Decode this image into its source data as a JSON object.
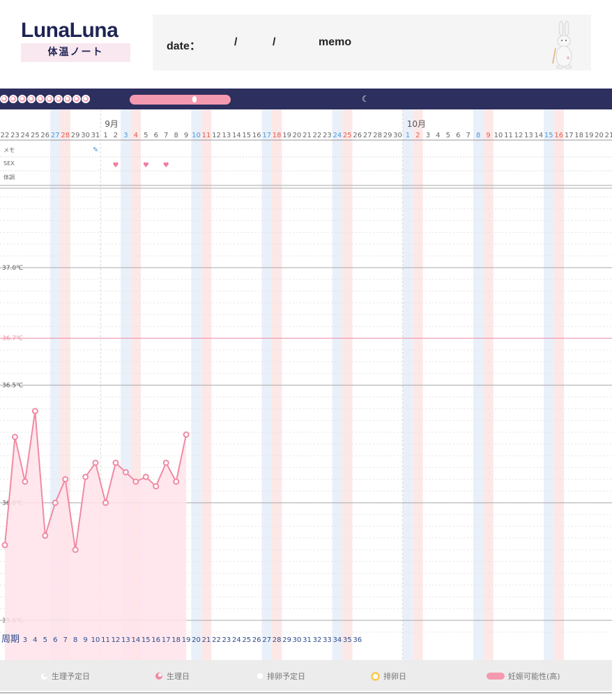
{
  "header": {
    "logo": "LunaLuna",
    "subtitle": "体温ノート",
    "date_label": "date：",
    "slash": "/",
    "memo_label": "memo"
  },
  "days_row": [
    22,
    23,
    24,
    25,
    26,
    27,
    28,
    29,
    30,
    31,
    1,
    2,
    3,
    4,
    5,
    6,
    7,
    8,
    9,
    10,
    11,
    12,
    13,
    14,
    15,
    16,
    17,
    18,
    19,
    20,
    21,
    22,
    23,
    24,
    25,
    26,
    27,
    28,
    29,
    30,
    1,
    2,
    3,
    4,
    5,
    6,
    7,
    8,
    9,
    10,
    11,
    12,
    13,
    14,
    15,
    16,
    17,
    18,
    19,
    20,
    21
  ],
  "day_colors": {
    "blue": [
      5,
      12,
      19,
      26,
      33,
      40,
      47,
      54
    ],
    "red": [
      6,
      13,
      20,
      27,
      34,
      41,
      48,
      55
    ]
  },
  "months": [
    {
      "label": "9月",
      "index": 10
    },
    {
      "label": "10月",
      "index": 40
    }
  ],
  "row_labels": {
    "memo": "メモ",
    "sex": "SEX",
    "condition": "体調"
  },
  "memo_icon": "pencil-icon",
  "sex_days": [
    11,
    14,
    16
  ],
  "memo_days": [
    9
  ],
  "temp_labels": [
    {
      "value": 37.0,
      "label": "37.0℃"
    },
    {
      "value": 36.7,
      "label": "36.7℃"
    },
    {
      "value": 36.5,
      "label": "36.5℃"
    },
    {
      "value": 36.0,
      "label": "36.0℃"
    },
    {
      "value": 35.5,
      "label": "35.5℃"
    }
  ],
  "cycle_label": "周期",
  "cycle_days": [
    3,
    4,
    5,
    6,
    7,
    8,
    9,
    10,
    11,
    12,
    13,
    14,
    15,
    16,
    17,
    18,
    19,
    20,
    21,
    22,
    23,
    24,
    25,
    26,
    27,
    28,
    29,
    30,
    31,
    32,
    33,
    34,
    35,
    36
  ],
  "chart_data": {
    "type": "line",
    "ylim": [
      35.5,
      37.3
    ],
    "reference_line": 36.7,
    "x": [
      "8/22",
      "8/23",
      "8/24",
      "8/25",
      "8/26",
      "8/27",
      "8/28",
      "8/29",
      "8/30",
      "8/31",
      "9/1",
      "9/2",
      "9/3",
      "9/4",
      "9/5",
      "9/6",
      "9/7",
      "9/8",
      "9/9"
    ],
    "values": [
      35.82,
      36.28,
      36.09,
      36.39,
      35.86,
      36.0,
      36.1,
      35.8,
      36.11,
      36.17,
      36.0,
      36.17,
      36.13,
      36.09,
      36.11,
      36.07,
      36.17,
      36.09,
      36.29
    ],
    "color": "#f08aa3",
    "fill": "#ffe3ea"
  },
  "legend": [
    {
      "icon": "white-moon-icon",
      "label": "生理予定日"
    },
    {
      "icon": "pink-moon-icon",
      "label": "生理日"
    },
    {
      "icon": "white-dot-icon",
      "label": "排卵予定日"
    },
    {
      "icon": "yellow-ring-icon",
      "label": "排卵日"
    },
    {
      "icon": "pink-pill-icon",
      "label": "妊娠可能性(高)"
    }
  ],
  "colors": {
    "navy": "#2d2f5e",
    "pink": "#f49ab0",
    "blue_col": "#e9f0fa",
    "red_col": "#fde8e8"
  }
}
